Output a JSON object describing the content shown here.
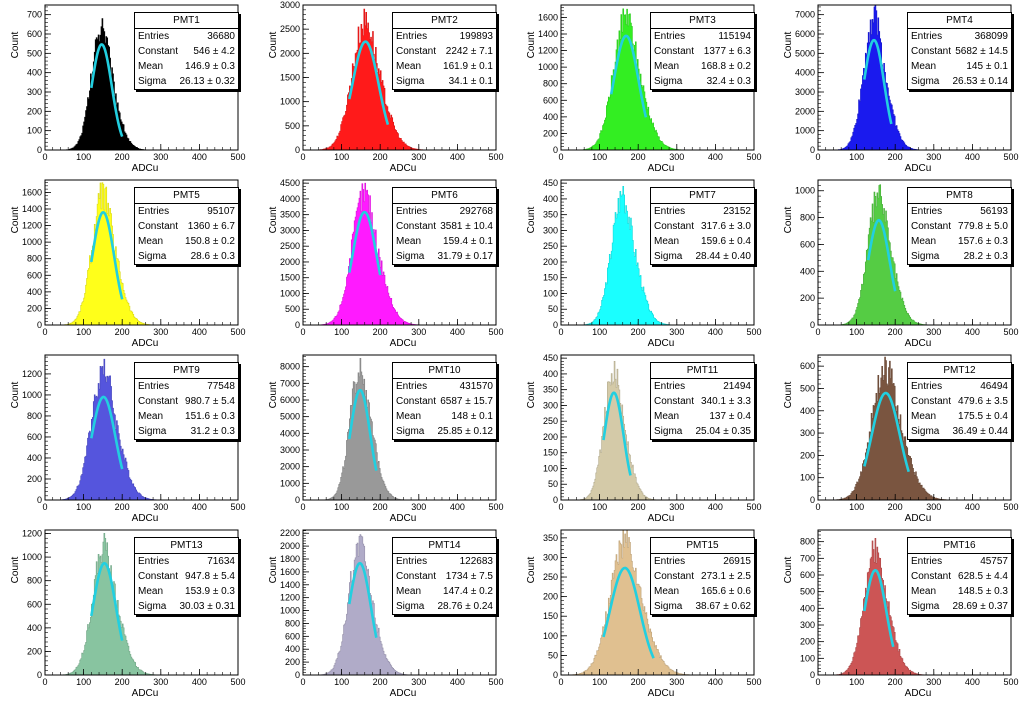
{
  "chart_data": [
    {
      "type": "histogram",
      "title": "PMT1",
      "xlabel": "ADCu",
      "ylabel": "Count",
      "xlim": [
        0,
        500
      ],
      "ylim": [
        0,
        750
      ],
      "yticks": [
        0,
        100,
        200,
        300,
        400,
        500,
        600,
        700
      ],
      "xticks": [
        0,
        100,
        200,
        300,
        400,
        500
      ],
      "color": "#000000",
      "fit_color": "#22cfe0",
      "peak": 680,
      "fit": {
        "constant": 546,
        "mean": 146.9,
        "sigma": 26.13,
        "range": [
          120,
          200
        ]
      },
      "stats": {
        "entries": "36680",
        "constant": "546 ± 4.2",
        "mean": "146.9 ± 0.3",
        "sigma": "26.13 ± 0.32"
      }
    },
    {
      "type": "histogram",
      "title": "PMT2",
      "xlabel": "ADCu",
      "ylabel": "Count",
      "xlim": [
        0,
        500
      ],
      "ylim": [
        0,
        3000
      ],
      "yticks": [
        0,
        500,
        1000,
        1500,
        2000,
        2500,
        3000
      ],
      "xticks": [
        0,
        100,
        200,
        300,
        400,
        500
      ],
      "color": "#ff1a1a",
      "fit_color": "#22cfe0",
      "peak": 2850,
      "fit": {
        "constant": 2242,
        "mean": 161.9,
        "sigma": 34.1,
        "range": [
          120,
          220
        ]
      },
      "stats": {
        "entries": "199893",
        "constant": "2242 ± 7.1",
        "mean": "161.9 ± 0.1",
        "sigma": "34.1 ± 0.1"
      }
    },
    {
      "type": "histogram",
      "title": "PMT3",
      "xlabel": "ADCu",
      "ylabel": "Count",
      "xlim": [
        0,
        500
      ],
      "ylim": [
        0,
        1750
      ],
      "yticks": [
        0,
        200,
        400,
        600,
        800,
        1000,
        1200,
        1400,
        1600
      ],
      "xticks": [
        0,
        100,
        200,
        300,
        400,
        500
      ],
      "color": "#33ee22",
      "fit_color": "#22cfe0",
      "peak": 1700,
      "fit": {
        "constant": 1377,
        "mean": 168.8,
        "sigma": 32.4,
        "range": [
          130,
          220
        ]
      },
      "stats": {
        "entries": "115194",
        "constant": "1377 ± 6.3",
        "mean": "168.8 ± 0.2",
        "sigma": "32.4 ± 0.3"
      }
    },
    {
      "type": "histogram",
      "title": "PMT4",
      "xlabel": "ADCu",
      "ylabel": "Count",
      "xlim": [
        0,
        500
      ],
      "ylim": [
        0,
        7500
      ],
      "yticks": [
        0,
        1000,
        2000,
        3000,
        4000,
        5000,
        6000,
        7000
      ],
      "xticks": [
        0,
        100,
        200,
        300,
        400,
        500
      ],
      "color": "#1a1aee",
      "fit_color": "#22cfe0",
      "peak": 7400,
      "fit": {
        "constant": 5682,
        "mean": 145,
        "sigma": 26.53,
        "range": [
          120,
          190
        ]
      },
      "stats": {
        "entries": "368099",
        "constant": "5682 ± 14.5",
        "mean": "145 ± 0.1",
        "sigma": "26.53 ± 0.14"
      }
    },
    {
      "type": "histogram",
      "title": "PMT5",
      "xlabel": "ADCu",
      "ylabel": "Count",
      "xlim": [
        0,
        500
      ],
      "ylim": [
        0,
        1750
      ],
      "yticks": [
        0,
        200,
        400,
        600,
        800,
        1000,
        1200,
        1400,
        1600
      ],
      "xticks": [
        0,
        100,
        200,
        300,
        400,
        500
      ],
      "color": "#ffff1a",
      "fit_color": "#22cfe0",
      "peak": 1700,
      "fit": {
        "constant": 1360,
        "mean": 150.8,
        "sigma": 28.6,
        "range": [
          120,
          200
        ]
      },
      "stats": {
        "entries": "95107",
        "constant": "1360 ± 6.7",
        "mean": "150.8 ± 0.2",
        "sigma": "28.6 ± 0.3"
      }
    },
    {
      "type": "histogram",
      "title": "PMT6",
      "xlabel": "ADCu",
      "ylabel": "Count",
      "xlim": [
        0,
        500
      ],
      "ylim": [
        0,
        4600
      ],
      "yticks": [
        0,
        500,
        1000,
        1500,
        2000,
        2500,
        3000,
        3500,
        4000,
        4500
      ],
      "xticks": [
        0,
        100,
        200,
        300,
        400,
        500
      ],
      "color": "#ff1aff",
      "fit_color": "#22cfe0",
      "peak": 4500,
      "fit": {
        "constant": 3581,
        "mean": 159.4,
        "sigma": 31.79,
        "range": [
          120,
          200
        ]
      },
      "stats": {
        "entries": "292768",
        "constant": "3581 ± 10.4",
        "mean": "159.4 ± 0.1",
        "sigma": "31.79 ± 0.17"
      }
    },
    {
      "type": "histogram",
      "title": "PMT7",
      "xlabel": "ADCu",
      "ylabel": "Count",
      "xlim": [
        0,
        500
      ],
      "ylim": [
        0,
        460
      ],
      "yticks": [
        0,
        50,
        100,
        150,
        200,
        250,
        300,
        350,
        400,
        450
      ],
      "xticks": [
        0,
        100,
        200,
        300,
        400,
        500
      ],
      "color": "#1affff",
      "fit_color": "#22cfe0",
      "peak": 440,
      "fit": null,
      "stats": {
        "entries": "23152",
        "constant": "317.6 ± 3.0",
        "mean": "159.6 ± 0.4",
        "sigma": "28.44 ± 0.40"
      }
    },
    {
      "type": "histogram",
      "title": "PMT8",
      "xlabel": "ADCu",
      "ylabel": "Count",
      "xlim": [
        0,
        500
      ],
      "ylim": [
        0,
        1080
      ],
      "yticks": [
        0,
        200,
        400,
        600,
        800,
        1000
      ],
      "xticks": [
        0,
        100,
        200,
        300,
        400,
        500
      ],
      "color": "#55cc44",
      "fit_color": "#22cfe0",
      "peak": 1040,
      "fit": {
        "constant": 779.8,
        "mean": 157.6,
        "sigma": 28.2,
        "range": [
          130,
          200
        ]
      },
      "stats": {
        "entries": "56193",
        "constant": "779.8 ± 5.0",
        "mean": "157.6 ± 0.3",
        "sigma": "28.2 ± 0.3"
      }
    },
    {
      "type": "histogram",
      "title": "PMT9",
      "xlabel": "ADCu",
      "ylabel": "Count",
      "xlim": [
        0,
        500
      ],
      "ylim": [
        0,
        1380
      ],
      "yticks": [
        0,
        200,
        400,
        600,
        800,
        1000,
        1200
      ],
      "xticks": [
        0,
        100,
        200,
        300,
        400,
        500
      ],
      "color": "#5555dd",
      "fit_color": "#22cfe0",
      "peak": 1340,
      "fit": {
        "constant": 980.7,
        "mean": 151.6,
        "sigma": 31.2,
        "range": [
          120,
          200
        ]
      },
      "stats": {
        "entries": "77548",
        "constant": "980.7 ± 5.4",
        "mean": "151.6 ± 0.3",
        "sigma": "31.2 ± 0.3"
      }
    },
    {
      "type": "histogram",
      "title": "PMT10",
      "xlabel": "ADCu",
      "ylabel": "Count",
      "xlim": [
        0,
        500
      ],
      "ylim": [
        0,
        8700
      ],
      "yticks": [
        0,
        1000,
        2000,
        3000,
        4000,
        5000,
        6000,
        7000,
        8000
      ],
      "xticks": [
        0,
        100,
        200,
        300,
        400,
        500
      ],
      "color": "#999999",
      "fit_color": "#22cfe0",
      "peak": 8500,
      "fit": {
        "constant": 6587,
        "mean": 148,
        "sigma": 25.85,
        "range": [
          120,
          190
        ]
      },
      "stats": {
        "entries": "431570",
        "constant": "6587 ± 15.7",
        "mean": "148 ± 0.1",
        "sigma": "25.85 ± 0.12"
      }
    },
    {
      "type": "histogram",
      "title": "PMT11",
      "xlabel": "ADCu",
      "ylabel": "Count",
      "xlim": [
        0,
        500
      ],
      "ylim": [
        0,
        460
      ],
      "yticks": [
        0,
        50,
        100,
        150,
        200,
        250,
        300,
        350,
        400,
        450
      ],
      "xticks": [
        0,
        100,
        200,
        300,
        400,
        500
      ],
      "color": "#d4caa8",
      "fit_color": "#22cfe0",
      "peak": 440,
      "fit": {
        "constant": 340.1,
        "mean": 137,
        "sigma": 25.04,
        "range": [
          110,
          180
        ]
      },
      "stats": {
        "entries": "21494",
        "constant": "340.1 ± 3.3",
        "mean": "137 ± 0.4",
        "sigma": "25.04 ± 0.35"
      }
    },
    {
      "type": "histogram",
      "title": "PMT12",
      "xlabel": "ADCu",
      "ylabel": "Count",
      "xlim": [
        0,
        500
      ],
      "ylim": [
        0,
        650
      ],
      "yticks": [
        0,
        100,
        200,
        300,
        400,
        500,
        600
      ],
      "xticks": [
        0,
        100,
        200,
        300,
        400,
        500
      ],
      "color": "#7a5540",
      "fit_color": "#22cfe0",
      "peak": 625,
      "fit": {
        "constant": 479.6,
        "mean": 175.5,
        "sigma": 36.49,
        "range": [
          120,
          235
        ]
      },
      "stats": {
        "entries": "46494",
        "constant": "479.6 ± 3.5",
        "mean": "175.5 ± 0.4",
        "sigma": "36.49 ± 0.44"
      }
    },
    {
      "type": "histogram",
      "title": "PMT13",
      "xlabel": "ADCu",
      "ylabel": "Count",
      "xlim": [
        0,
        500
      ],
      "ylim": [
        0,
        1230
      ],
      "yticks": [
        0,
        200,
        400,
        600,
        800,
        1000,
        1200
      ],
      "xticks": [
        0,
        100,
        200,
        300,
        400,
        500
      ],
      "color": "#88c4a0",
      "fit_color": "#22cfe0",
      "peak": 1160,
      "fit": {
        "constant": 947.8,
        "mean": 153.9,
        "sigma": 30.03,
        "range": [
          120,
          200
        ]
      },
      "stats": {
        "entries": "71634",
        "constant": "947.8 ± 5.4",
        "mean": "153.9 ± 0.3",
        "sigma": "30.03 ± 0.31"
      }
    },
    {
      "type": "histogram",
      "title": "PMT14",
      "xlabel": "ADCu",
      "ylabel": "Count",
      "xlim": [
        0,
        500
      ],
      "ylim": [
        0,
        2250
      ],
      "yticks": [
        0,
        200,
        400,
        600,
        800,
        1000,
        1200,
        1400,
        1600,
        1800,
        2000,
        2200
      ],
      "xticks": [
        0,
        100,
        200,
        300,
        400,
        500
      ],
      "color": "#b0abc8",
      "fit_color": "#22cfe0",
      "peak": 2180,
      "fit": {
        "constant": 1734,
        "mean": 147.4,
        "sigma": 28.76,
        "range": [
          120,
          190
        ]
      },
      "stats": {
        "entries": "122683",
        "constant": "1734 ± 7.5",
        "mean": "147.4 ± 0.2",
        "sigma": "28.76 ± 0.24"
      }
    },
    {
      "type": "histogram",
      "title": "PMT15",
      "xlabel": "ADCu",
      "ylabel": "Count",
      "xlim": [
        0,
        500
      ],
      "ylim": [
        0,
        370
      ],
      "yticks": [
        0,
        50,
        100,
        150,
        200,
        250,
        300,
        350
      ],
      "xticks": [
        0,
        100,
        200,
        300,
        400,
        500
      ],
      "color": "#e0c090",
      "fit_color": "#22cfe0",
      "peak": 360,
      "fit": {
        "constant": 273.1,
        "mean": 165.6,
        "sigma": 38.67,
        "range": [
          110,
          240
        ]
      },
      "stats": {
        "entries": "26915",
        "constant": "273.1 ± 2.5",
        "mean": "165.6 ± 0.6",
        "sigma": "38.67 ± 0.62"
      }
    },
    {
      "type": "histogram",
      "title": "PMT16",
      "xlabel": "ADCu",
      "ylabel": "Count",
      "xlim": [
        0,
        500
      ],
      "ylim": [
        0,
        870
      ],
      "yticks": [
        0,
        100,
        200,
        300,
        400,
        500,
        600,
        700,
        800
      ],
      "xticks": [
        0,
        100,
        200,
        300,
        400,
        500
      ],
      "color": "#cc5555",
      "fit_color": "#22cfe0",
      "peak": 820,
      "fit": {
        "constant": 628.5,
        "mean": 148.5,
        "sigma": 28.69,
        "range": [
          120,
          195
        ]
      },
      "stats": {
        "entries": "45757",
        "constant": "628.5 ± 4.4",
        "mean": "148.5 ± 0.3",
        "sigma": "28.69 ± 0.37"
      }
    }
  ],
  "labels": {
    "entries": "Entries",
    "constant": "Constant",
    "mean": "Mean",
    "sigma": "Sigma"
  }
}
